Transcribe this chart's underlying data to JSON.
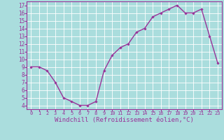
{
  "hours": [
    0,
    1,
    2,
    3,
    4,
    5,
    6,
    7,
    8,
    9,
    10,
    11,
    12,
    13,
    14,
    15,
    16,
    17,
    18,
    19,
    20,
    21,
    22,
    23
  ],
  "values": [
    9.0,
    9.0,
    8.5,
    7.0,
    5.0,
    4.5,
    4.0,
    4.0,
    4.5,
    8.5,
    10.5,
    11.5,
    12.0,
    13.5,
    14.0,
    15.5,
    16.0,
    16.5,
    17.0,
    16.0,
    16.0,
    16.5,
    13.0,
    9.5
  ],
  "line_color": "#993399",
  "marker": "D",
  "marker_size": 1.8,
  "bg_color": "#aadddd",
  "grid_color": "#ffffff",
  "xlabel": "Windchill (Refroidissement éolien,°C)",
  "ylabel": "",
  "title": "",
  "xlim": [
    -0.5,
    23.5
  ],
  "ylim": [
    3.5,
    17.5
  ],
  "yticks": [
    4,
    5,
    6,
    7,
    8,
    9,
    10,
    11,
    12,
    13,
    14,
    15,
    16,
    17
  ],
  "xticks": [
    0,
    1,
    2,
    3,
    4,
    5,
    6,
    7,
    8,
    9,
    10,
    11,
    12,
    13,
    14,
    15,
    16,
    17,
    18,
    19,
    20,
    21,
    22,
    23
  ],
  "tick_color": "#993399",
  "axis_label_color": "#993399",
  "font_family": "monospace",
  "xlabel_fontsize": 6.5,
  "ytick_fontsize": 5.5,
  "xtick_fontsize": 5.0,
  "linewidth": 1.0
}
